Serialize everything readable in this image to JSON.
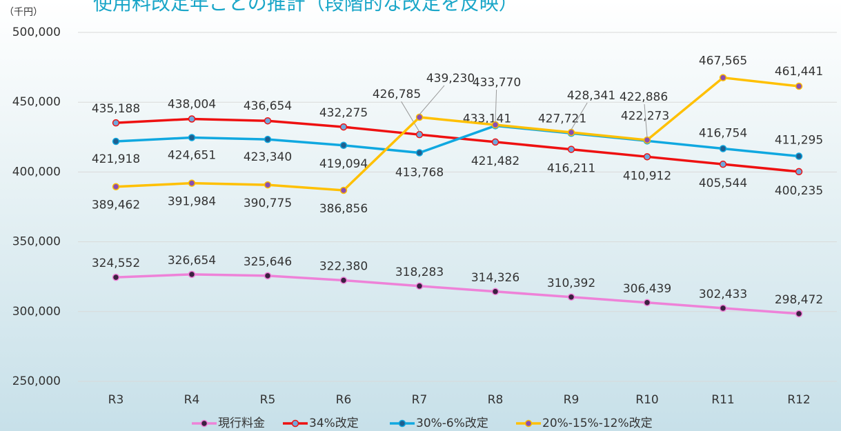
{
  "chart_data": {
    "type": "line",
    "title": "使用料改定年ごとの推計（段階的な改定を反映）",
    "y_unit": "（千円）",
    "categories": [
      "R3",
      "R4",
      "R5",
      "R6",
      "R7",
      "R8",
      "R9",
      "R10",
      "R11",
      "R12"
    ],
    "ylim": [
      250000,
      500000
    ],
    "yticks": [
      {
        "value": 250000,
        "label": "250,000"
      },
      {
        "value": 300000,
        "label": "300,000"
      },
      {
        "value": 350000,
        "label": "350,000"
      },
      {
        "value": 400000,
        "label": "400,000"
      },
      {
        "value": 450000,
        "label": "450,000"
      },
      {
        "value": 500000,
        "label": "500,000"
      }
    ],
    "grid": true,
    "legend": "bottom",
    "series": [
      {
        "name": "現行料金",
        "color": "#ee82d8",
        "marker_color": "#3b2040",
        "values": [
          324552,
          326654,
          325646,
          322380,
          318283,
          314326,
          310392,
          306439,
          302433,
          298472
        ],
        "value_labels": [
          "324,552",
          "326,654",
          "325,646",
          "322,380",
          "318,283",
          "314,326",
          "310,392",
          "306,439",
          "302,433",
          "298,472"
        ]
      },
      {
        "name": "34%改定",
        "color": "#ee1111",
        "marker_color": "#6fa8dc",
        "values": [
          435188,
          438004,
          436654,
          432275,
          426785,
          421482,
          416211,
          410912,
          405544,
          400235
        ],
        "value_labels": [
          "435,188",
          "438,004",
          "436,654",
          "432,275",
          "426,785",
          "421,482",
          "416,211",
          "410,912",
          "405,544",
          "400,235"
        ]
      },
      {
        "name": "30%-6%改定",
        "color": "#10a8e0",
        "marker_color": "#1f5f8f",
        "values": [
          421918,
          424651,
          423340,
          419094,
          413768,
          433141,
          427721,
          422273,
          416754,
          411295
        ],
        "value_labels": [
          "421,918",
          "424,651",
          "423,340",
          "419,094",
          "413,768",
          "433,141",
          "427,721",
          "422,273",
          "416,754",
          "411,295"
        ]
      },
      {
        "name": "20%-15%-12%改定",
        "color": "#ffc000",
        "marker_color": "#8a4fb0",
        "values": [
          389462,
          391984,
          390775,
          386856,
          439230,
          433770,
          428341,
          422886,
          467565,
          461441
        ],
        "value_labels": [
          "389,462",
          "391,984",
          "390,775",
          "386,856",
          "439,230",
          "433,770",
          "428,341",
          "422,886",
          "467,565",
          "461,441"
        ]
      }
    ]
  }
}
